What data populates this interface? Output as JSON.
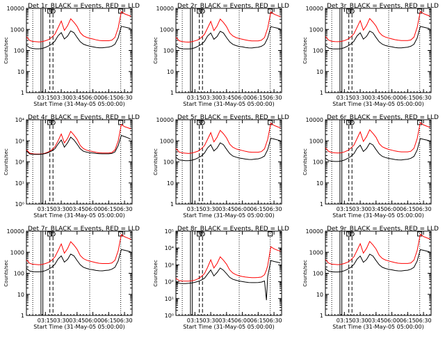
{
  "colors": {
    "events": "#000000",
    "lld": "#ff0000",
    "axis": "#000000",
    "background": "#ffffff"
  },
  "common": {
    "ylabel": "Counts/sec",
    "xlabel": "Start Time (31-May-05 05:00:00)",
    "xticks": [
      {
        "t": 3.25,
        "label": "03:15"
      },
      {
        "t": 3.5,
        "label": "03:30"
      },
      {
        "t": 3.75,
        "label": "03:45"
      },
      {
        "t": 4.0,
        "label": "06:00"
      },
      {
        "t": 4.25,
        "label": "06:15"
      },
      {
        "t": 4.5,
        "label": "06:30"
      }
    ],
    "yscale": "log",
    "ylim": [
      1,
      10000
    ],
    "xlim": [
      2.95,
      4.62
    ],
    "grid": false,
    "markers": {
      "dotted": [
        3.05,
        3.95,
        4.44
      ],
      "solid": [
        3.18,
        3.21
      ],
      "dashed": [
        3.32,
        3.37
      ],
      "S_label_at": 3.32,
      "D_label_at": 3.37
    }
  },
  "chart_data": [
    {
      "type": "line",
      "panel": 1,
      "title": "Det 1r_BLACK = Events, RED = LLD",
      "ytick_style": "plain",
      "ytick_labels": [
        "1",
        "10",
        "100",
        "1000",
        "10000"
      ],
      "x": [
        2.95,
        3.0,
        3.05,
        3.1,
        3.15,
        3.2,
        3.25,
        3.3,
        3.35,
        3.4,
        3.45,
        3.5,
        3.55,
        3.6,
        3.65,
        3.7,
        3.75,
        3.8,
        3.85,
        3.9,
        3.95,
        4.0,
        4.05,
        4.1,
        4.15,
        4.2,
        4.25,
        4.3,
        4.35,
        4.4,
        4.45,
        4.5,
        4.55,
        4.6
      ],
      "series": [
        {
          "color": "lld",
          "values": [
            450,
            300,
            270,
            260,
            255,
            265,
            290,
            330,
            420,
            600,
            1200,
            2500,
            900,
            1500,
            3200,
            2200,
            1400,
            700,
            500,
            420,
            380,
            350,
            320,
            300,
            290,
            290,
            290,
            310,
            420,
            1200,
            7000,
            5500,
            4800,
            4200
          ]
        },
        {
          "color": "events",
          "values": [
            180,
            135,
            125,
            120,
            120,
            125,
            140,
            165,
            200,
            280,
            500,
            700,
            350,
            480,
            850,
            700,
            420,
            260,
            200,
            175,
            160,
            150,
            140,
            135,
            135,
            140,
            145,
            160,
            200,
            400,
            1400,
            1300,
            1200,
            1100
          ]
        }
      ]
    },
    {
      "type": "line",
      "panel": 2,
      "title": "Det 2r_BLACK = Events, RED = LLD",
      "ytick_style": "plain",
      "ytick_labels": [
        "1",
        "10",
        "100",
        "1000",
        "10000"
      ],
      "x": [
        2.95,
        3.0,
        3.05,
        3.1,
        3.15,
        3.2,
        3.25,
        3.3,
        3.35,
        3.4,
        3.45,
        3.5,
        3.55,
        3.6,
        3.65,
        3.7,
        3.75,
        3.8,
        3.85,
        3.9,
        3.95,
        4.0,
        4.05,
        4.1,
        4.15,
        4.2,
        4.25,
        4.3,
        4.35,
        4.4,
        4.45,
        4.5,
        4.55,
        4.6
      ],
      "series": [
        {
          "color": "lld",
          "values": [
            420,
            290,
            265,
            255,
            250,
            260,
            285,
            320,
            410,
            580,
            1150,
            2400,
            880,
            1450,
            3100,
            2150,
            1350,
            680,
            490,
            410,
            370,
            340,
            315,
            295,
            285,
            285,
            285,
            305,
            410,
            1150,
            6800,
            5300,
            4600,
            4000
          ]
        },
        {
          "color": "events",
          "values": [
            170,
            130,
            120,
            118,
            118,
            122,
            135,
            160,
            195,
            270,
            480,
            680,
            340,
            460,
            820,
            680,
            410,
            255,
            195,
            170,
            155,
            148,
            138,
            133,
            132,
            138,
            142,
            158,
            195,
            390,
            1350,
            1250,
            1150,
            1050
          ]
        }
      ]
    },
    {
      "type": "line",
      "panel": 3,
      "title": "Det 3r_BLACK = Events, RED = LLD",
      "ytick_style": "plain",
      "ytick_labels": [
        "1",
        "10",
        "100",
        "1000",
        "10000"
      ],
      "x": [
        2.95,
        3.0,
        3.05,
        3.1,
        3.15,
        3.2,
        3.25,
        3.3,
        3.35,
        3.4,
        3.45,
        3.5,
        3.55,
        3.6,
        3.65,
        3.7,
        3.75,
        3.8,
        3.85,
        3.9,
        3.95,
        4.0,
        4.05,
        4.1,
        4.15,
        4.2,
        4.25,
        4.3,
        4.35,
        4.4,
        4.45,
        4.5,
        4.55,
        4.6
      ],
      "series": [
        {
          "color": "lld",
          "values": [
            460,
            310,
            275,
            265,
            260,
            270,
            295,
            340,
            430,
            620,
            1250,
            2600,
            920,
            1550,
            3300,
            2250,
            1450,
            720,
            510,
            430,
            390,
            355,
            325,
            305,
            295,
            295,
            295,
            315,
            430,
            1250,
            7200,
            5600,
            4900,
            4300
          ]
        },
        {
          "color": "events",
          "values": [
            175,
            130,
            120,
            118,
            118,
            122,
            136,
            162,
            198,
            275,
            490,
            690,
            345,
            470,
            830,
            690,
            415,
            258,
            198,
            172,
            158,
            149,
            139,
            134,
            133,
            139,
            144,
            159,
            198,
            395,
            1380,
            1280,
            1180,
            1080
          ]
        }
      ]
    },
    {
      "type": "line",
      "panel": 4,
      "title": "Det 4r_BLACK = Events, RED = LLD",
      "ytick_style": "power",
      "ytick_labels": [
        "10⁰",
        "10¹",
        "10²",
        "10³",
        "10⁴"
      ],
      "x": [
        2.95,
        3.0,
        3.05,
        3.1,
        3.15,
        3.2,
        3.25,
        3.3,
        3.35,
        3.4,
        3.45,
        3.5,
        3.55,
        3.6,
        3.65,
        3.7,
        3.75,
        3.8,
        3.85,
        3.9,
        3.95,
        4.0,
        4.05,
        4.1,
        4.15,
        4.2,
        4.25,
        4.3,
        4.35,
        4.4,
        4.45,
        4.5,
        4.55,
        4.6
      ],
      "series": [
        {
          "color": "lld",
          "values": [
            380,
            260,
            240,
            235,
            235,
            240,
            260,
            300,
            370,
            520,
            1000,
            2100,
            800,
            1300,
            2800,
            1900,
            1200,
            600,
            430,
            360,
            330,
            305,
            285,
            270,
            262,
            262,
            262,
            280,
            370,
            1000,
            6000,
            4700,
            4200,
            3700
          ]
        },
        {
          "color": "events",
          "values": [
            330,
            240,
            230,
            228,
            228,
            232,
            250,
            280,
            330,
            420,
            700,
            1100,
            500,
            800,
            1500,
            1100,
            700,
            420,
            320,
            290,
            272,
            262,
            252,
            245,
            242,
            242,
            242,
            252,
            300,
            600,
            1800,
            1600,
            1400,
            1200
          ]
        }
      ]
    },
    {
      "type": "line",
      "panel": 5,
      "title": "Det 5r_BLACK = Events, RED = LLD",
      "ytick_style": "plain",
      "ytick_labels": [
        "1",
        "10",
        "100",
        "1000",
        "10000"
      ],
      "x": [
        2.95,
        3.0,
        3.05,
        3.1,
        3.15,
        3.2,
        3.25,
        3.3,
        3.35,
        3.4,
        3.45,
        3.5,
        3.55,
        3.6,
        3.65,
        3.7,
        3.75,
        3.8,
        3.85,
        3.9,
        3.95,
        4.0,
        4.05,
        4.1,
        4.15,
        4.2,
        4.25,
        4.3,
        4.35,
        4.4,
        4.45,
        4.5,
        4.55,
        4.6
      ],
      "series": [
        {
          "color": "lld",
          "values": [
            430,
            295,
            268,
            258,
            252,
            262,
            288,
            325,
            415,
            590,
            1180,
            2450,
            890,
            1480,
            3150,
            2180,
            1380,
            690,
            495,
            415,
            375,
            345,
            318,
            298,
            288,
            288,
            288,
            308,
            415,
            1180,
            6900,
            5400,
            4700,
            4100
          ]
        },
        {
          "color": "events",
          "values": [
            165,
            125,
            118,
            115,
            115,
            120,
            132,
            155,
            188,
            260,
            460,
            650,
            330,
            450,
            800,
            660,
            400,
            250,
            190,
            168,
            152,
            145,
            136,
            131,
            130,
            136,
            140,
            155,
            190,
            380,
            1320,
            1220,
            1120,
            1020
          ]
        }
      ]
    },
    {
      "type": "line",
      "panel": 6,
      "title": "Det 6r_BLACK = Events, RED = LLD",
      "ytick_style": "plain",
      "ytick_labels": [
        "1",
        "10",
        "100",
        "1000",
        "10000"
      ],
      "x": [
        2.95,
        3.0,
        3.05,
        3.1,
        3.15,
        3.2,
        3.25,
        3.3,
        3.35,
        3.4,
        3.45,
        3.5,
        3.55,
        3.6,
        3.65,
        3.7,
        3.75,
        3.8,
        3.85,
        3.9,
        3.95,
        4.0,
        4.05,
        4.1,
        4.15,
        4.2,
        4.25,
        4.3,
        4.35,
        4.4,
        4.45,
        4.5,
        4.55,
        4.6
      ],
      "series": [
        {
          "color": "lld",
          "values": [
            470,
            315,
            280,
            268,
            262,
            272,
            298,
            345,
            440,
            630,
            1280,
            2650,
            940,
            1580,
            3350,
            2280,
            1470,
            730,
            520,
            440,
            395,
            360,
            330,
            310,
            300,
            300,
            300,
            320,
            440,
            1280,
            7300,
            5700,
            5000,
            4400
          ]
        },
        {
          "color": "events",
          "values": [
            150,
            115,
            108,
            105,
            105,
            110,
            122,
            145,
            178,
            245,
            440,
            620,
            310,
            430,
            770,
            640,
            385,
            240,
            182,
            160,
            146,
            139,
            130,
            125,
            124,
            130,
            134,
            148,
            182,
            365,
            1280,
            1180,
            1090,
            990
          ]
        }
      ]
    },
    {
      "type": "line",
      "panel": 7,
      "title": "Det 7r_BLACK = Events, RED = LLD",
      "ytick_style": "plain",
      "ytick_labels": [
        "1",
        "10",
        "100",
        "1000",
        "10000"
      ],
      "x": [
        2.95,
        3.0,
        3.05,
        3.1,
        3.15,
        3.2,
        3.25,
        3.3,
        3.35,
        3.4,
        3.45,
        3.5,
        3.55,
        3.6,
        3.65,
        3.7,
        3.75,
        3.8,
        3.85,
        3.9,
        3.95,
        4.0,
        4.05,
        4.1,
        4.15,
        4.2,
        4.25,
        4.3,
        4.35,
        4.4,
        4.45,
        4.5,
        4.55,
        4.6
      ],
      "series": [
        {
          "color": "lld",
          "values": [
            440,
            298,
            270,
            260,
            255,
            264,
            290,
            330,
            418,
            600,
            1190,
            2480,
            895,
            1490,
            3180,
            2190,
            1390,
            695,
            498,
            418,
            378,
            348,
            320,
            300,
            290,
            290,
            290,
            310,
            418,
            1190,
            6950,
            5450,
            4750,
            4150
          ]
        },
        {
          "color": "events",
          "values": [
            172,
            128,
            120,
            117,
            117,
            121,
            134,
            158,
            192,
            268,
            475,
            670,
            338,
            458,
            815,
            675,
            408,
            256,
            194,
            170,
            155,
            147,
            137,
            132,
            131,
            137,
            141,
            157,
            194,
            388,
            1340,
            1240,
            1140,
            1040
          ]
        }
      ]
    },
    {
      "type": "line",
      "panel": 8,
      "title": "Det 8r_BLACK = Events, RED = LLD",
      "ytick_style": "power",
      "ytick_labels": [
        "10⁰",
        "10¹",
        "10²",
        "10³",
        "10⁴",
        "10⁵"
      ],
      "ylim": [
        1,
        100000
      ],
      "x": [
        2.95,
        3.0,
        3.05,
        3.1,
        3.15,
        3.2,
        3.25,
        3.3,
        3.35,
        3.4,
        3.45,
        3.5,
        3.55,
        3.6,
        3.65,
        3.7,
        3.75,
        3.8,
        3.85,
        3.9,
        3.95,
        4.0,
        4.05,
        4.1,
        4.15,
        4.2,
        4.25,
        4.3,
        4.35,
        4.38,
        4.4,
        4.45,
        4.5,
        4.55,
        4.6
      ],
      "series": [
        {
          "color": "lld",
          "values": [
            160,
            115,
            110,
            108,
            108,
            112,
            125,
            150,
            200,
            300,
            700,
            2000,
            650,
            1200,
            3000,
            1900,
            1100,
            500,
            330,
            260,
            225,
            205,
            190,
            180,
            175,
            175,
            178,
            190,
            260,
            500,
            900,
            12000,
            9000,
            7500,
            6500
          ]
        },
        {
          "color": "events",
          "values": [
            90,
            80,
            78,
            78,
            80,
            84,
            92,
            105,
            125,
            160,
            280,
            500,
            220,
            350,
            650,
            480,
            300,
            180,
            140,
            122,
            110,
            102,
            95,
            90,
            88,
            88,
            90,
            95,
            110,
            8,
            200,
            1800,
            1600,
            1450,
            1300
          ]
        }
      ]
    },
    {
      "type": "line",
      "panel": 9,
      "title": "Det 9r_BLACK = Events, RED = LLD",
      "ytick_style": "plain",
      "ytick_labels": [
        "1",
        "10",
        "100",
        "1000",
        "10000"
      ],
      "x": [
        2.95,
        3.0,
        3.05,
        3.1,
        3.15,
        3.2,
        3.25,
        3.3,
        3.35,
        3.4,
        3.45,
        3.5,
        3.55,
        3.6,
        3.65,
        3.7,
        3.75,
        3.8,
        3.85,
        3.9,
        3.95,
        4.0,
        4.05,
        4.1,
        4.15,
        4.2,
        4.25,
        4.3,
        4.35,
        4.4,
        4.45,
        4.5,
        4.55,
        4.6
      ],
      "series": [
        {
          "color": "lld",
          "values": [
            450,
            305,
            272,
            262,
            257,
            267,
            292,
            335,
            425,
            610,
            1220,
            2550,
            910,
            1520,
            3250,
            2230,
            1420,
            710,
            505,
            425,
            385,
            352,
            322,
            302,
            292,
            292,
            292,
            312,
            425,
            1220,
            7100,
            5550,
            4850,
            4250
          ]
        },
        {
          "color": "events",
          "values": [
            168,
            126,
            118,
            116,
            116,
            120,
            133,
            156,
            190,
            264,
            468,
            660,
            334,
            452,
            806,
            668,
            404,
            253,
            192,
            169,
            154,
            146,
            136,
            131,
            130,
            136,
            140,
            156,
            192,
            384,
            1330,
            1230,
            1130,
            1030
          ]
        }
      ]
    }
  ]
}
